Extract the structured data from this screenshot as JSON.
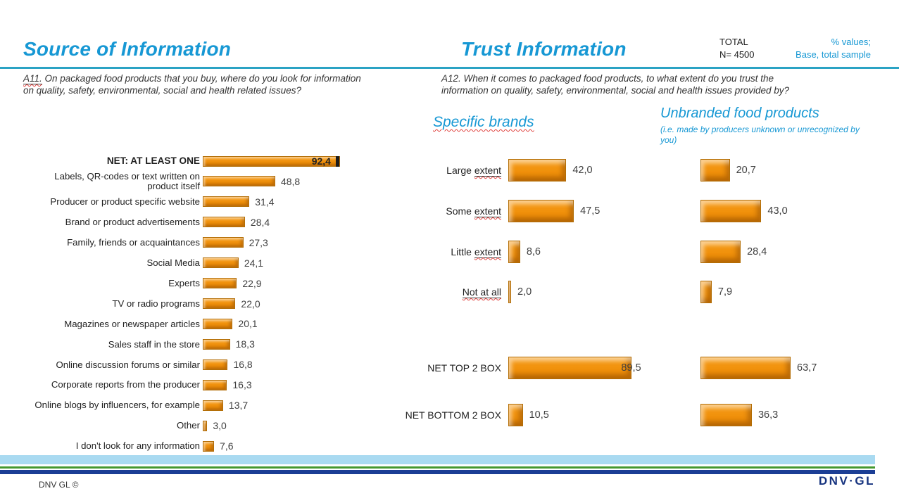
{
  "header": {
    "left_title": "Source of Information",
    "right_title": "Trust Information",
    "total_label": "TOTAL",
    "total_n": "N= 4500",
    "note_line1": "% values;",
    "note_line2": "Base, total sample"
  },
  "questions": {
    "a11_prefix": "A11.",
    "a11_line1": " On packaged food products that you buy, where do you look for information",
    "a11_line2": "on quality, safety, environmental, social and health related issues?",
    "a12_line1": "A12. When it comes to packaged food products, to what extent do you trust the",
    "a12_line2": "information on quality, safety, environmental, social and health issues provided by?"
  },
  "chart_data": [
    {
      "type": "bar",
      "orientation": "horizontal",
      "title": "Source of Information",
      "question": "A11. On packaged food products that you buy, where do you look for information on quality, safety, environmental, social and health related issues?",
      "value_format": "percent, comma decimal",
      "categories": [
        "NET: AT LEAST ONE",
        "Labels, QR-codes or text written on\nproduct itself",
        "Producer or product specific website",
        "Brand or product advertisements",
        "Family, friends or acquaintances",
        "Social Media",
        "Experts",
        "TV or radio programs",
        "Magazines or newspaper articles",
        "Sales staff in the store",
        "Online discussion forums or similar",
        "Corporate reports from the producer",
        "Online blogs by influencers, for example",
        "Other",
        "I don't look for any information"
      ],
      "values": [
        92.4,
        48.8,
        31.4,
        28.4,
        27.3,
        24.1,
        22.9,
        22.0,
        20.1,
        18.3,
        16.8,
        16.3,
        13.7,
        3.0,
        7.6
      ]
    },
    {
      "type": "bar",
      "orientation": "horizontal",
      "title": "Specific brands",
      "question": "A12. When it comes to packaged food products, to what extent do you trust the information on quality, safety, environmental, social and health issues provided by?",
      "value_format": "percent, comma decimal",
      "categories": [
        "Large extent",
        "Some extent",
        "Little extent",
        "Not at all",
        "NET TOP 2 BOX",
        "NET BOTTOM 2 BOX"
      ],
      "values": [
        42.0,
        47.5,
        8.6,
        2.0,
        89.5,
        10.5
      ]
    },
    {
      "type": "bar",
      "orientation": "horizontal",
      "title": "Unbranded food products",
      "subtitle_line1": "(i.e. made by producers unknown or unrecognized by",
      "subtitle_line2": "you)",
      "value_format": "percent, comma decimal",
      "categories": [
        "Large extent",
        "Some extent",
        "Little extent",
        "Not at all",
        "NET TOP 2 BOX",
        "NET BOTTOM 2 BOX"
      ],
      "values": [
        20.7,
        43.0,
        28.4,
        7.9,
        63.7,
        36.3
      ]
    }
  ],
  "footer": {
    "copyright": "DNV GL ©",
    "logo": "DNV·GL"
  },
  "colors": {
    "accent_blue": "#1798d4",
    "rule_teal": "#2ba3c4",
    "bar_orange": "#f2940f",
    "bar_border": "#b36d04",
    "band_light_blue": "#a9daf1",
    "band_green": "#44982f",
    "band_navy": "#1b3e95",
    "logo_navy": "#16337f"
  }
}
